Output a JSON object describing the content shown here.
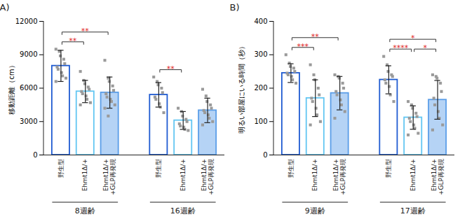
{
  "chart_data": [
    {
      "type": "bar",
      "title": "(A)",
      "y_label": "移動距離（cm）",
      "ylim": [
        0,
        12000
      ],
      "yticks": [
        0,
        3000,
        6000,
        9000,
        12000
      ],
      "grid": false,
      "categories": [
        "8週齢",
        "16週齢"
      ],
      "series": [
        {
          "name": "野生型",
          "color": "#1f5bd1",
          "marker": "square",
          "values": [
            8000,
            5400
          ],
          "errors": [
            1400,
            1100
          ],
          "points": [
            [
              9500,
              9300,
              8900,
              8600,
              8200,
              7900,
              7700,
              7400,
              7100,
              6900,
              6600
            ],
            [
              7000,
              6600,
              6300,
              6000,
              5600,
              5200,
              5000,
              4600,
              4300,
              3800
            ]
          ]
        },
        {
          "name": "Ehmt1Δ/+",
          "color": "#62c6f2",
          "marker": "square",
          "values": [
            5700,
            3100
          ],
          "errors": [
            1000,
            800
          ],
          "points": [
            [
              7500,
              6700,
              6400,
              6100,
              5900,
              5700,
              5500,
              5300,
              5000,
              4700,
              4500
            ],
            [
              4200,
              3900,
              3500,
              3200,
              3000,
              2800,
              2600,
              2500,
              2300,
              2200
            ]
          ]
        },
        {
          "name": "Ehmt1Δ/+\n+GLP再発現",
          "color": "#5b9ee8",
          "marker": "square",
          "values": [
            5600,
            4000
          ],
          "errors": [
            1400,
            1100
          ],
          "points": [
            [
              8500,
              6900,
              6600,
              6200,
              5800,
              5500,
              5200,
              5000,
              4800,
              4500,
              4200,
              3500
            ],
            [
              5900,
              5300,
              4800,
              4500,
              4200,
              4000,
              3800,
              3600,
              3300,
              3000,
              2700
            ]
          ]
        }
      ],
      "significance": [
        {
          "category": "8週齢",
          "from": "野生型",
          "to": "Ehmt1Δ/+",
          "label": "**"
        },
        {
          "category": "8週齢",
          "from": "野生型",
          "to": "Ehmt1Δ/+\n+GLP再発現",
          "label": "**"
        },
        {
          "category": "16週齢",
          "from": "野生型",
          "to": "Ehmt1Δ/+",
          "label": "**"
        }
      ]
    },
    {
      "type": "bar",
      "title": "(B)",
      "y_label": "明るい部屋にいる時間（秒）",
      "ylim": [
        0,
        400
      ],
      "yticks": [
        0,
        100,
        200,
        300,
        400
      ],
      "grid": false,
      "categories": [
        "9週齢",
        "17週齢"
      ],
      "series": [
        {
          "name": "野生型",
          "color": "#1f5bd1",
          "marker": "square",
          "values": [
            245,
            225
          ],
          "errors": [
            28,
            42
          ],
          "points": [
            [
              300,
              275,
              265,
              260,
              250,
              245,
              240,
              235,
              225,
              215
            ],
            [
              295,
              270,
              250,
              240,
              235,
              225,
              215,
              205,
              180,
              160
            ]
          ]
        },
        {
          "name": "Ehmt1Δ/+",
          "color": "#62c6f2",
          "marker": "square",
          "values": [
            170,
            112
          ],
          "errors": [
            55,
            35
          ],
          "points": [
            [
              270,
              240,
              225,
              200,
              180,
              170,
              160,
              140,
              120,
              100,
              90
            ],
            [
              160,
              150,
              140,
              125,
              115,
              110,
              100,
              90,
              80,
              65,
              60
            ]
          ]
        },
        {
          "name": "Ehmt1Δ/+\n+GLP再発現",
          "color": "#5b9ee8",
          "marker": "square",
          "values": [
            185,
            165
          ],
          "errors": [
            50,
            58
          ],
          "points": [
            [
              240,
              235,
              230,
              215,
              200,
              190,
              180,
              165,
              150,
              130,
              110
            ],
            [
              240,
              235,
              230,
              215,
              190,
              170,
              150,
              130,
              110,
              90,
              75
            ]
          ]
        }
      ],
      "significance": [
        {
          "category": "9週齢",
          "from": "野生型",
          "to": "Ehmt1Δ/+",
          "label": "***"
        },
        {
          "category": "9週齢",
          "from": "野生型",
          "to": "Ehmt1Δ/+\n+GLP再発現",
          "label": "**"
        },
        {
          "category": "17週齢",
          "from": "野生型",
          "to": "Ehmt1Δ/+",
          "label": "****"
        },
        {
          "category": "17週齢",
          "from": "Ehmt1Δ/+",
          "to": "Ehmt1Δ/+\n+GLP再発現",
          "label": "*"
        },
        {
          "category": "17週齢",
          "from": "野生型",
          "to": "Ehmt1Δ/+\n+GLP再発現",
          "label": "*"
        }
      ]
    }
  ]
}
